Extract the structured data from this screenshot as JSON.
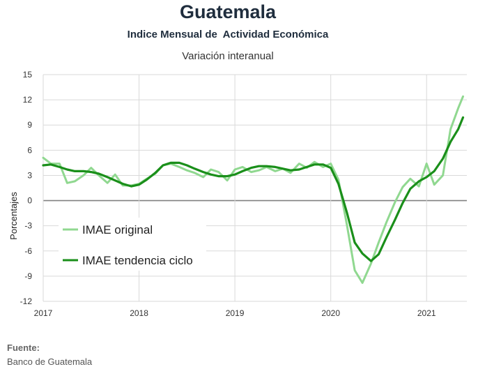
{
  "header": {
    "title": "Guatemala",
    "subtitle": "Indice Mensual de  Actividad Económica",
    "subtitle2": "Variación interanual"
  },
  "footer": {
    "source_label": "Fuente:",
    "source_value": "Banco de Guatemala"
  },
  "chart_data": {
    "type": "line",
    "ylabel": "Porcentajes",
    "xlabel": "",
    "ylim": [
      -12,
      15
    ],
    "yticks": [
      15,
      12,
      9,
      6,
      3,
      0,
      -3,
      -6,
      -9,
      -12
    ],
    "ytick_labels": [
      "15",
      "12",
      "9",
      "6",
      "3",
      "0",
      "-3",
      "-6",
      "-9",
      "-12"
    ],
    "xlim": [
      2017,
      2021.42
    ],
    "xticks": [
      2017,
      2018,
      2019,
      2020,
      2021
    ],
    "xtick_labels": [
      "2017",
      "2018",
      "2019",
      "2020",
      "2021"
    ],
    "grid": true,
    "legend_position": "lower-left",
    "series": [
      {
        "name": "IMAE original",
        "color": "#90d890",
        "points": [
          [
            2017.0,
            5.1
          ],
          [
            2017.08,
            4.4
          ],
          [
            2017.17,
            4.4
          ],
          [
            2017.25,
            2.1
          ],
          [
            2017.33,
            2.3
          ],
          [
            2017.42,
            3.0
          ],
          [
            2017.5,
            3.9
          ],
          [
            2017.58,
            3.0
          ],
          [
            2017.67,
            2.1
          ],
          [
            2017.75,
            3.1
          ],
          [
            2017.83,
            1.8
          ],
          [
            2017.92,
            1.8
          ],
          [
            2018.0,
            2.0
          ],
          [
            2018.08,
            2.6
          ],
          [
            2018.17,
            3.2
          ],
          [
            2018.25,
            4.2
          ],
          [
            2018.33,
            4.4
          ],
          [
            2018.42,
            4.0
          ],
          [
            2018.5,
            3.6
          ],
          [
            2018.58,
            3.3
          ],
          [
            2018.67,
            2.8
          ],
          [
            2018.75,
            3.7
          ],
          [
            2018.83,
            3.4
          ],
          [
            2018.92,
            2.4
          ],
          [
            2019.0,
            3.7
          ],
          [
            2019.08,
            4.0
          ],
          [
            2019.17,
            3.4
          ],
          [
            2019.25,
            3.6
          ],
          [
            2019.33,
            4.0
          ],
          [
            2019.42,
            3.5
          ],
          [
            2019.5,
            3.8
          ],
          [
            2019.58,
            3.3
          ],
          [
            2019.67,
            4.4
          ],
          [
            2019.75,
            3.9
          ],
          [
            2019.83,
            4.6
          ],
          [
            2019.92,
            4.0
          ],
          [
            2020.0,
            4.4
          ],
          [
            2020.08,
            2.5
          ],
          [
            2020.17,
            -3.0
          ],
          [
            2020.25,
            -8.3
          ],
          [
            2020.33,
            -9.8
          ],
          [
            2020.42,
            -7.5
          ],
          [
            2020.5,
            -5.0
          ],
          [
            2020.58,
            -2.6
          ],
          [
            2020.67,
            -0.2
          ],
          [
            2020.75,
            1.6
          ],
          [
            2020.83,
            2.6
          ],
          [
            2020.92,
            1.7
          ],
          [
            2021.0,
            4.4
          ],
          [
            2021.08,
            1.9
          ],
          [
            2021.17,
            3.0
          ],
          [
            2021.25,
            8.5
          ],
          [
            2021.33,
            11.0
          ],
          [
            2021.38,
            12.4
          ]
        ]
      },
      {
        "name": "IMAE tendencia ciclo",
        "color": "#1a8f1a",
        "points": [
          [
            2017.0,
            4.2
          ],
          [
            2017.08,
            4.3
          ],
          [
            2017.17,
            4.0
          ],
          [
            2017.25,
            3.7
          ],
          [
            2017.33,
            3.5
          ],
          [
            2017.42,
            3.5
          ],
          [
            2017.5,
            3.4
          ],
          [
            2017.58,
            3.2
          ],
          [
            2017.67,
            2.8
          ],
          [
            2017.75,
            2.4
          ],
          [
            2017.83,
            2.0
          ],
          [
            2017.92,
            1.7
          ],
          [
            2018.0,
            1.9
          ],
          [
            2018.08,
            2.5
          ],
          [
            2018.17,
            3.3
          ],
          [
            2018.25,
            4.2
          ],
          [
            2018.33,
            4.5
          ],
          [
            2018.42,
            4.5
          ],
          [
            2018.5,
            4.2
          ],
          [
            2018.58,
            3.8
          ],
          [
            2018.67,
            3.4
          ],
          [
            2018.75,
            3.1
          ],
          [
            2018.83,
            2.9
          ],
          [
            2018.92,
            2.9
          ],
          [
            2019.0,
            3.1
          ],
          [
            2019.08,
            3.5
          ],
          [
            2019.17,
            3.9
          ],
          [
            2019.25,
            4.1
          ],
          [
            2019.33,
            4.1
          ],
          [
            2019.42,
            4.0
          ],
          [
            2019.5,
            3.8
          ],
          [
            2019.58,
            3.6
          ],
          [
            2019.67,
            3.7
          ],
          [
            2019.75,
            4.0
          ],
          [
            2019.83,
            4.3
          ],
          [
            2019.92,
            4.3
          ],
          [
            2020.0,
            3.9
          ],
          [
            2020.08,
            2.0
          ],
          [
            2020.17,
            -1.5
          ],
          [
            2020.25,
            -5.0
          ],
          [
            2020.33,
            -6.3
          ],
          [
            2020.42,
            -7.2
          ],
          [
            2020.5,
            -6.4
          ],
          [
            2020.58,
            -4.4
          ],
          [
            2020.67,
            -2.3
          ],
          [
            2020.75,
            -0.3
          ],
          [
            2020.83,
            1.4
          ],
          [
            2020.92,
            2.3
          ],
          [
            2021.0,
            2.8
          ],
          [
            2021.08,
            3.5
          ],
          [
            2021.17,
            5.0
          ],
          [
            2021.25,
            7.0
          ],
          [
            2021.33,
            8.5
          ],
          [
            2021.38,
            9.9
          ]
        ]
      }
    ]
  }
}
